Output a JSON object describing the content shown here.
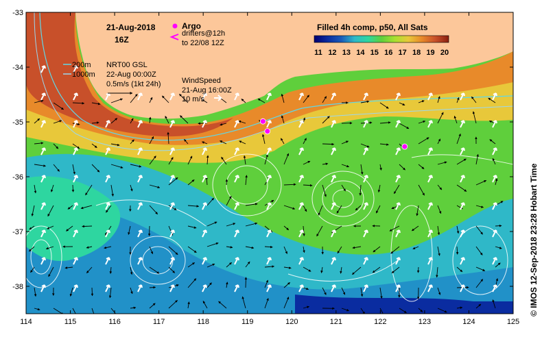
{
  "map": {
    "lon_range": [
      114,
      125
    ],
    "lat_range": [
      -38.5,
      -33
    ],
    "lon_ticks": [
      "114",
      "115",
      "116",
      "117",
      "118",
      "119",
      "120",
      "121",
      "122",
      "123",
      "124",
      "125"
    ],
    "lat_ticks": [
      "-33",
      "-34",
      "-35",
      "-36",
      "-37",
      "-38"
    ],
    "colors": {
      "land": "#fcc79a",
      "shelf_warm": "#c8502a",
      "coast_yellow": "#e8c83a",
      "green": "#5fcf3c",
      "cool_cyan": "#2fb8c8",
      "deep_blue": "#1a5ab8"
    }
  },
  "annotations": {
    "date": "21-Aug-2018",
    "hour": "16Z",
    "argo_label": "Argo",
    "drifters_label": "drifters@12h",
    "drifters_to": "to 22/08 12Z",
    "depth_200": "200m",
    "depth_1000": "1000m",
    "nrt_title": "NRT00 GSL",
    "nrt_date": "22-Aug 00:00Z",
    "current_scale": "0.5m/s (1kt 24h)",
    "wind_title": "WindSpeed",
    "wind_date": "21-Aug 16:00Z",
    "wind_scale": "10 m/s"
  },
  "colorbar": {
    "title": "Filled 4h comp, p50, All Sats",
    "ticks": [
      "11",
      "12",
      "13",
      "14",
      "15",
      "16",
      "17",
      "18",
      "19",
      "20"
    ],
    "stops": [
      "#000070",
      "#0a2ca0",
      "#1a5ab8",
      "#2fb8c8",
      "#2ed6a0",
      "#5fcf3c",
      "#a8e030",
      "#e8c83a",
      "#e88a2a",
      "#c8502a",
      "#8a2010"
    ]
  },
  "argo_floats": [
    {
      "lon": 122.55,
      "lat": -35.45
    },
    {
      "lon": 119.45,
      "lat": -35.17
    },
    {
      "lon": 119.35,
      "lat": -34.99
    }
  ],
  "credit": "© IMOS 12-Sep-2018 23:28 Hobart Time"
}
